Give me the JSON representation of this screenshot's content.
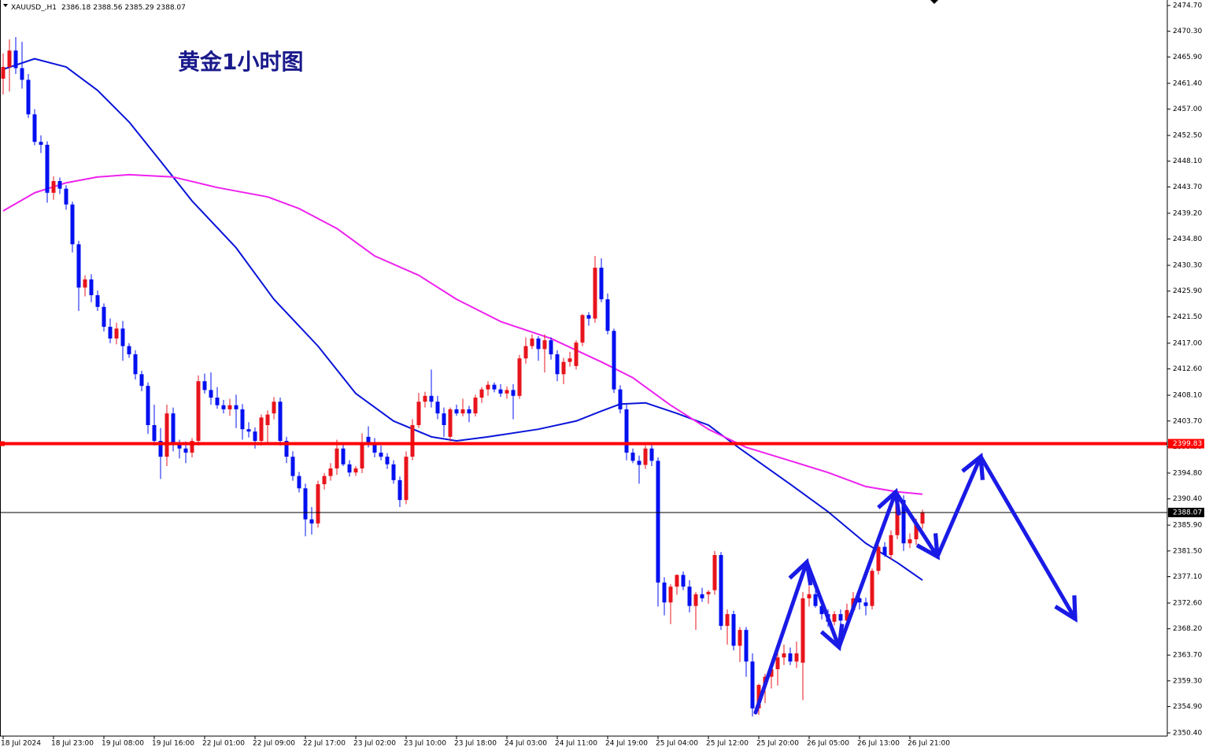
{
  "chart_data": {
    "type": "candlestick",
    "symbol": "XAUUSD_,H1",
    "title": "黄金1小时图",
    "up_color": "#e8141c",
    "down_color": "#0010f0",
    "ylim": [
      2349.86,
      2475.64
    ],
    "yticks": [
      {
        "value": 2474.7,
        "label": "2474.70"
      },
      {
        "value": 2470.3,
        "label": "2470.30"
      },
      {
        "value": 2465.9,
        "label": "2465.90"
      },
      {
        "value": 2461.4,
        "label": "2461.40"
      },
      {
        "value": 2457.0,
        "label": "2457.00"
      },
      {
        "value": 2452.5,
        "label": "2452.50"
      },
      {
        "value": 2448.1,
        "label": "2448.10"
      },
      {
        "value": 2443.7,
        "label": "2443.70"
      },
      {
        "value": 2439.2,
        "label": "2439.20"
      },
      {
        "value": 2434.8,
        "label": "2434.80"
      },
      {
        "value": 2430.3,
        "label": "2430.30"
      },
      {
        "value": 2425.9,
        "label": "2425.90"
      },
      {
        "value": 2421.5,
        "label": "2421.50"
      },
      {
        "value": 2417.0,
        "label": "2417.00"
      },
      {
        "value": 2412.6,
        "label": "2412.60"
      },
      {
        "value": 2408.1,
        "label": "2408.10"
      },
      {
        "value": 2403.7,
        "label": "2403.70"
      },
      {
        "value": 2399.3,
        "label": "2399.30"
      },
      {
        "value": 2394.8,
        "label": "2394.80"
      },
      {
        "value": 2390.4,
        "label": "2390.40"
      },
      {
        "value": 2385.9,
        "label": "2385.90"
      },
      {
        "value": 2381.5,
        "label": "2381.50"
      },
      {
        "value": 2377.1,
        "label": "2377.10"
      },
      {
        "value": 2372.6,
        "label": "2372.60"
      },
      {
        "value": 2368.2,
        "label": "2368.20"
      },
      {
        "value": 2363.7,
        "label": "2363.70"
      },
      {
        "value": 2359.3,
        "label": "2359.30"
      },
      {
        "value": 2354.9,
        "label": "2354.90"
      },
      {
        "value": 2350.4,
        "label": "2350.40"
      }
    ],
    "categories": [
      "18 Jul 2024",
      null,
      null,
      null,
      null,
      null,
      null,
      null,
      "18 Jul 23:00",
      null,
      null,
      null,
      null,
      null,
      null,
      null,
      "19 Jul 08:00",
      null,
      null,
      null,
      null,
      null,
      null,
      null,
      "19 Jul 16:00",
      null,
      null,
      null,
      null,
      null,
      null,
      null,
      "22 Jul 01:00",
      null,
      null,
      null,
      null,
      null,
      null,
      null,
      "22 Jul 09:00",
      null,
      null,
      null,
      null,
      null,
      null,
      null,
      "22 Jul 17:00",
      null,
      null,
      null,
      null,
      null,
      null,
      null,
      "23 Jul 02:00",
      null,
      null,
      null,
      null,
      null,
      null,
      null,
      "23 Jul 10:00",
      null,
      null,
      null,
      null,
      null,
      null,
      null,
      "23 Jul 18:00",
      null,
      null,
      null,
      null,
      null,
      null,
      null,
      "24 Jul 03:00",
      null,
      null,
      null,
      null,
      null,
      null,
      null,
      "24 Jul 11:00",
      null,
      null,
      null,
      null,
      null,
      null,
      null,
      "24 Jul 19:00",
      null,
      null,
      null,
      null,
      null,
      null,
      null,
      "25 Jul 04:00",
      null,
      null,
      null,
      null,
      null,
      null,
      null,
      "25 Jul 12:00",
      null,
      null,
      null,
      null,
      null,
      null,
      null,
      "25 Jul 20:00",
      null,
      null,
      null,
      null,
      null,
      null,
      null,
      "26 Jul 05:00",
      null,
      null,
      null,
      null,
      null,
      null,
      null,
      "26 Jul 13:00",
      null,
      null,
      null,
      null,
      null,
      null,
      null,
      "26 Jul 21:00",
      null,
      null
    ],
    "candles": [
      [
        2462.2,
        2466.5,
        2459.5,
        2464.2
      ],
      [
        2464.2,
        2468.9,
        2460.0,
        2467.0
      ],
      [
        2467.0,
        2469.3,
        2463.0,
        2464.0
      ],
      [
        2464.0,
        2468.5,
        2460.5,
        2462.0
      ],
      [
        2462.0,
        2463.0,
        2455.5,
        2456.1
      ],
      [
        2456.1,
        2457.0,
        2450.8,
        2451.4
      ],
      [
        2451.4,
        2452.5,
        2449.5,
        2450.9
      ],
      [
        2450.9,
        2451.5,
        2441.0,
        2442.7
      ],
      [
        2442.7,
        2445.5,
        2441.5,
        2444.7
      ],
      [
        2444.7,
        2445.3,
        2442.5,
        2443.4
      ],
      [
        2443.4,
        2444.0,
        2439.8,
        2440.7
      ],
      [
        2440.7,
        2441.2,
        2432.5,
        2433.9
      ],
      [
        2433.9,
        2434.5,
        2422.5,
        2426.5
      ],
      [
        2426.5,
        2428.6,
        2425.0,
        2427.9
      ],
      [
        2427.9,
        2428.8,
        2424.0,
        2425.2
      ],
      [
        2425.2,
        2426.0,
        2422.5,
        2423.2
      ],
      [
        2423.2,
        2423.8,
        2419.0,
        2419.8
      ],
      [
        2419.8,
        2421.2,
        2417.0,
        2417.8
      ],
      [
        2417.8,
        2420.5,
        2416.8,
        2419.5
      ],
      [
        2419.5,
        2420.8,
        2414.0,
        2416.5
      ],
      [
        2416.5,
        2417.0,
        2414.5,
        2415.1
      ],
      [
        2415.1,
        2415.8,
        2410.8,
        2411.7
      ],
      [
        2411.7,
        2412.3,
        2408.8,
        2409.7
      ],
      [
        2409.7,
        2410.3,
        2401.5,
        2403.0
      ],
      [
        2403.0,
        2406.5,
        2399.5,
        2400.3
      ],
      [
        2400.3,
        2402.5,
        2393.8,
        2397.6
      ],
      [
        2397.6,
        2406.5,
        2396.0,
        2405.0
      ],
      [
        2405.0,
        2406.0,
        2398.5,
        2399.6
      ],
      [
        2399.6,
        2400.5,
        2397.3,
        2399.0
      ],
      [
        2399.0,
        2400.2,
        2396.5,
        2398.3
      ],
      [
        2398.3,
        2400.8,
        2397.5,
        2400.3
      ],
      [
        2400.3,
        2411.5,
        2399.5,
        2410.5
      ],
      [
        2410.5,
        2411.8,
        2408.4,
        2409.0
      ],
      [
        2409.0,
        2412.0,
        2406.5,
        2407.7
      ],
      [
        2407.7,
        2409.5,
        2405.8,
        2406.4
      ],
      [
        2406.4,
        2407.3,
        2405.0,
        2405.7
      ],
      [
        2405.7,
        2407.5,
        2404.6,
        2406.4
      ],
      [
        2406.4,
        2408.2,
        2402.5,
        2405.7
      ],
      [
        2405.7,
        2406.6,
        2400.5,
        2402.3
      ],
      [
        2402.3,
        2403.5,
        2400.9,
        2401.9
      ],
      [
        2401.9,
        2402.6,
        2399.0,
        2400.3
      ],
      [
        2400.3,
        2404.8,
        2399.5,
        2404.3
      ],
      [
        2403.0,
        2405.5,
        2400.0,
        2404.8
      ],
      [
        2405.0,
        2407.8,
        2404.0,
        2407.0
      ],
      [
        2407.0,
        2407.7,
        2399.5,
        2400.3
      ],
      [
        2400.3,
        2401.0,
        2396.5,
        2397.6
      ],
      [
        2397.6,
        2398.5,
        2393.5,
        2394.3
      ],
      [
        2394.3,
        2395.0,
        2391.5,
        2392.2
      ],
      [
        2392.2,
        2393.0,
        2384.0,
        2386.9
      ],
      [
        2386.9,
        2389.0,
        2384.3,
        2386.2
      ],
      [
        2386.2,
        2393.5,
        2385.5,
        2392.9
      ],
      [
        2392.9,
        2394.8,
        2392.0,
        2394.3
      ],
      [
        2394.3,
        2396.5,
        2393.5,
        2395.6
      ],
      [
        2395.6,
        2400.5,
        2394.5,
        2399.0
      ],
      [
        2399.0,
        2399.8,
        2396.0,
        2396.3
      ],
      [
        2396.3,
        2397.0,
        2394.2,
        2394.9
      ],
      [
        2394.9,
        2396.0,
        2394.3,
        2395.6
      ],
      [
        2395.6,
        2401.6,
        2394.8,
        2399.6
      ],
      [
        2401.0,
        2402.8,
        2399.2,
        2399.6
      ],
      [
        2399.6,
        2400.8,
        2397.5,
        2398.3
      ],
      [
        2398.3,
        2399.5,
        2397.0,
        2397.6
      ],
      [
        2397.6,
        2398.2,
        2395.5,
        2396.3
      ],
      [
        2396.3,
        2397.0,
        2393.0,
        2393.6
      ],
      [
        2393.6,
        2394.2,
        2389.0,
        2390.2
      ],
      [
        2390.2,
        2398.5,
        2389.5,
        2397.6
      ],
      [
        2397.6,
        2404.0,
        2397.0,
        2403.0
      ],
      [
        2403.0,
        2408.5,
        2402.5,
        2407.0
      ],
      [
        2407.0,
        2408.7,
        2406.0,
        2408.0
      ],
      [
        2408.0,
        2412.5,
        2406.0,
        2407.0
      ],
      [
        2407.0,
        2408.0,
        2404.0,
        2405.0
      ],
      [
        2405.0,
        2406.0,
        2401.0,
        2403.0
      ],
      [
        2401.0,
        2406.0,
        2400.2,
        2405.7
      ],
      [
        2405.7,
        2406.5,
        2404.6,
        2405.0
      ],
      [
        2405.0,
        2407.5,
        2404.5,
        2405.7
      ],
      [
        2405.7,
        2406.3,
        2403.5,
        2405.0
      ],
      [
        2405.0,
        2408.2,
        2404.5,
        2407.7
      ],
      [
        2407.7,
        2409.5,
        2406.8,
        2409.1
      ],
      [
        2409.1,
        2410.5,
        2408.0,
        2409.9
      ],
      [
        2409.9,
        2410.3,
        2408.6,
        2409.1
      ],
      [
        2409.1,
        2410.0,
        2407.8,
        2408.4
      ],
      [
        2408.4,
        2409.6,
        2407.5,
        2409.0
      ],
      [
        2409.0,
        2410.0,
        2404.0,
        2408.0
      ],
      [
        2408.0,
        2415.0,
        2407.5,
        2414.4
      ],
      [
        2414.4,
        2418.0,
        2413.5,
        2416.5
      ],
      [
        2416.5,
        2418.5,
        2416.0,
        2417.8
      ],
      [
        2417.8,
        2418.2,
        2414.0,
        2416.0
      ],
      [
        2416.0,
        2418.5,
        2412.0,
        2417.5
      ],
      [
        2417.5,
        2418.0,
        2414.2,
        2415.1
      ],
      [
        2415.1,
        2415.8,
        2410.5,
        2411.7
      ],
      [
        2411.7,
        2414.5,
        2410.0,
        2413.8
      ],
      [
        2413.8,
        2415.5,
        2413.0,
        2414.4
      ],
      [
        2413.1,
        2417.5,
        2412.5,
        2417.1
      ],
      [
        2417.1,
        2422.0,
        2416.5,
        2421.8
      ],
      [
        2421.8,
        2422.3,
        2420.0,
        2421.2
      ],
      [
        2421.2,
        2431.9,
        2420.5,
        2429.9
      ],
      [
        2429.9,
        2431.5,
        2424.0,
        2424.5
      ],
      [
        2424.5,
        2425.5,
        2418.5,
        2419.1
      ],
      [
        2419.1,
        2419.5,
        2408.5,
        2409.1
      ],
      [
        2409.1,
        2409.8,
        2405.0,
        2405.7
      ],
      [
        2405.7,
        2406.5,
        2397.0,
        2398.3
      ],
      [
        2398.3,
        2399.0,
        2396.5,
        2396.9
      ],
      [
        2396.9,
        2397.8,
        2393.0,
        2396.2
      ],
      [
        2396.2,
        2399.5,
        2395.5,
        2399.0
      ],
      [
        2399.0,
        2399.8,
        2396.0,
        2396.9
      ],
      [
        2396.9,
        2397.5,
        2372.0,
        2376.1
      ],
      [
        2376.1,
        2377.0,
        2370.5,
        2372.7
      ],
      [
        2372.7,
        2375.8,
        2369.0,
        2375.4
      ],
      [
        2375.4,
        2377.5,
        2374.0,
        2377.4
      ],
      [
        2377.4,
        2378.0,
        2374.8,
        2375.4
      ],
      [
        2375.4,
        2376.5,
        2371.0,
        2372.1
      ],
      [
        2372.1,
        2374.5,
        2368.0,
        2374.1
      ],
      [
        2374.1,
        2375.2,
        2372.8,
        2373.4
      ],
      [
        2374.1,
        2374.8,
        2372.5,
        2374.5
      ],
      [
        2374.8,
        2381.5,
        2374.0,
        2380.8
      ],
      [
        2380.8,
        2381.3,
        2368.0,
        2368.7
      ],
      [
        2368.7,
        2371.5,
        2365.5,
        2370.7
      ],
      [
        2370.7,
        2371.3,
        2364.5,
        2365.3
      ],
      [
        2365.3,
        2368.5,
        2362.5,
        2368.0
      ],
      [
        2368.0,
        2368.5,
        2360.0,
        2362.6
      ],
      [
        2362.6,
        2364.0,
        2353.2,
        2354.6
      ],
      [
        2354.6,
        2358.8,
        2353.5,
        2358.6
      ],
      [
        2358.6,
        2360.5,
        2355.5,
        2360.0
      ],
      [
        2360.0,
        2361.5,
        2358.0,
        2361.3
      ],
      [
        2361.3,
        2364.5,
        2358.5,
        2363.3
      ],
      [
        2363.3,
        2365.5,
        2362.0,
        2364.0
      ],
      [
        2364.0,
        2365.0,
        2362.0,
        2362.6
      ],
      [
        2362.6,
        2366.0,
        2361.5,
        2364.0
      ],
      [
        2362.4,
        2374.5,
        2356.0,
        2373.4
      ],
      [
        2373.4,
        2375.5,
        2372.0,
        2374.1
      ],
      [
        2374.1,
        2375.0,
        2371.8,
        2372.1
      ],
      [
        2372.1,
        2373.0,
        2369.8,
        2370.7
      ],
      [
        2370.7,
        2371.5,
        2368.5,
        2369.4
      ],
      [
        2369.4,
        2371.2,
        2368.8,
        2370.7
      ],
      [
        2370.7,
        2371.5,
        2368.5,
        2369.6
      ],
      [
        2369.6,
        2372.5,
        2369.0,
        2371.4
      ],
      [
        2371.4,
        2374.5,
        2370.8,
        2373.4
      ],
      [
        2373.4,
        2374.5,
        2371.5,
        2372.7
      ],
      [
        2372.7,
        2373.5,
        2370.5,
        2372.1
      ],
      [
        2372.1,
        2378.5,
        2371.5,
        2378.1
      ],
      [
        2378.1,
        2382.5,
        2377.5,
        2382.2
      ],
      [
        2382.2,
        2383.0,
        2380.5,
        2380.8
      ],
      [
        2380.8,
        2385.0,
        2380.0,
        2384.2
      ],
      [
        2384.2,
        2391.5,
        2383.5,
        2390.2
      ],
      [
        2390.2,
        2391.0,
        2381.5,
        2382.8
      ],
      [
        2382.8,
        2384.5,
        2382.0,
        2383.5
      ],
      [
        2383.5,
        2387.0,
        2382.5,
        2386.2
      ],
      [
        2386.18,
        2388.56,
        2385.29,
        2388.07
      ]
    ],
    "lines": [
      {
        "color": "#0a14d8",
        "x": [
          0,
          5,
          10,
          15,
          20,
          25,
          30,
          37,
          43,
          50,
          56,
          62,
          68,
          72,
          77,
          85,
          91,
          95,
          98,
          102,
          107,
          112,
          117,
          125,
          131,
          137,
          142,
          146
        ],
        "values": [
          2463.8,
          2465.6,
          2464.2,
          2460.2,
          2454.8,
          2448.1,
          2441.3,
          2433.3,
          2424.5,
          2416.5,
          2408.4,
          2403.7,
          2401.0,
          2400.3,
          2401.0,
          2402.3,
          2403.7,
          2405.4,
          2406.6,
          2406.8,
          2405.0,
          2403.0,
          2399.0,
          2392.9,
          2388.2,
          2382.8,
          2379.5,
          2376.5
        ]
      },
      {
        "color": "#ee22ee",
        "x": [
          0,
          5,
          10,
          15,
          20,
          27,
          34,
          42,
          47,
          53,
          59,
          66,
          72,
          79,
          87,
          95,
          100,
          106,
          112,
          118,
          125,
          131,
          137,
          142,
          146
        ],
        "values": [
          2439.6,
          2442.7,
          2444.4,
          2445.4,
          2445.8,
          2445.4,
          2443.6,
          2442.0,
          2440.0,
          2436.6,
          2431.9,
          2428.6,
          2424.5,
          2420.7,
          2417.8,
          2413.8,
          2411.1,
          2406.4,
          2402.3,
          2399.2,
          2396.9,
          2394.9,
          2392.5,
          2391.6,
          2391.2
        ]
      }
    ],
    "levels": [
      {
        "value": 2399.83,
        "color": "#ff0000"
      }
    ]
  }
}
